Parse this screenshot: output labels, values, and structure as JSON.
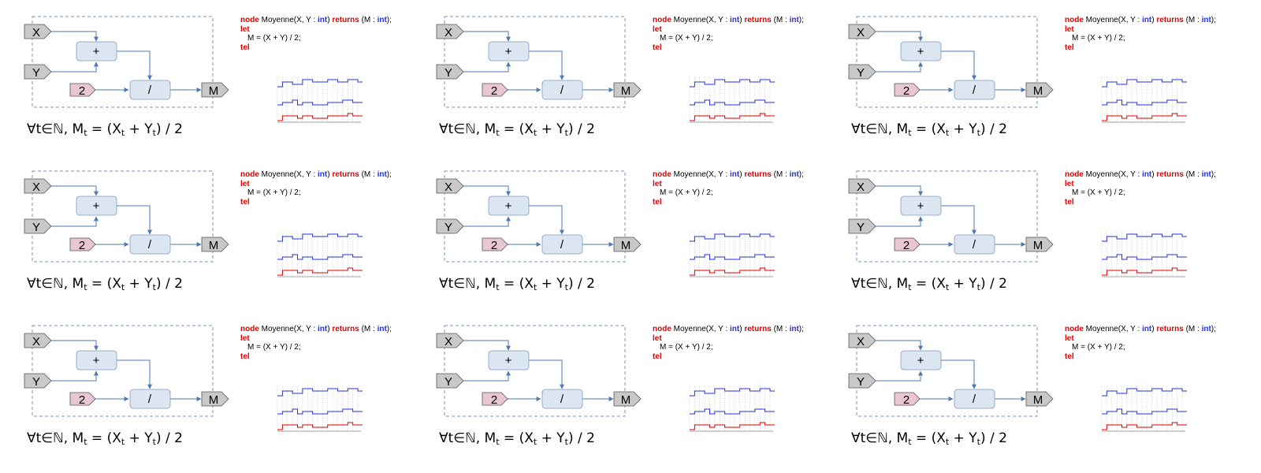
{
  "layout": {
    "columns": 3,
    "rows": 3
  },
  "diagram": {
    "input_x": "X",
    "input_y": "Y",
    "constant": "2",
    "op_add": "+",
    "op_div": "/",
    "output": "M"
  },
  "code": {
    "kw_node": "node",
    "signature_pre": " Moyenne(X, Y : ",
    "type_int": "int",
    "signature_mid": ") ",
    "kw_returns": "returns",
    "returns_pre": " (M : ",
    "returns_post": ");",
    "kw_let": "let",
    "equation": "M = (X + Y) / 2;",
    "kw_tel": "tel"
  },
  "formula": {
    "forall": "∀t∈ℕ, M",
    "sub_t": "t",
    "eq_open": " = (X",
    "plus": " + Y",
    "close": ") / 2"
  },
  "chart_data": {
    "type": "line",
    "x": [
      0,
      1,
      2,
      3,
      4,
      5,
      6,
      7,
      8,
      9,
      10,
      11,
      12,
      13,
      14,
      15,
      16
    ],
    "series": [
      {
        "values": [
          2,
          4,
          4,
          3,
          3,
          5,
          5,
          4,
          4,
          4,
          5,
          5,
          4,
          4,
          5,
          5,
          4
        ]
      },
      {
        "values": [
          1,
          2,
          2,
          3,
          1,
          2,
          2,
          1,
          1,
          1,
          2,
          2,
          2,
          3,
          3,
          2,
          2
        ]
      },
      {
        "values": [
          1,
          3,
          3,
          3,
          2,
          3,
          3,
          2,
          2,
          2,
          3,
          3,
          3,
          3,
          4,
          3,
          3
        ]
      }
    ],
    "colors": [
      "#2233dd",
      "#2233dd",
      "#e00000"
    ],
    "grid": true,
    "ylim": [
      0,
      6
    ]
  }
}
